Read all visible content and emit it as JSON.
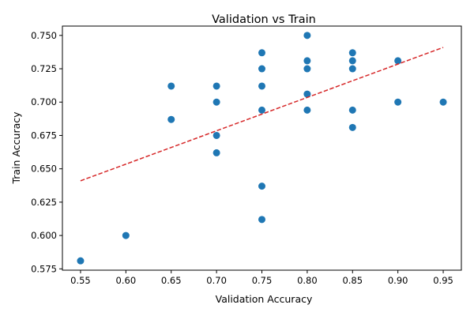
{
  "chart_data": {
    "type": "scatter",
    "title": "Validation vs Train",
    "xlabel": "Validation Accuracy",
    "ylabel": "Train Accuracy",
    "xlim": [
      0.53,
      0.97
    ],
    "ylim": [
      0.574,
      0.757
    ],
    "x_ticks": [
      "0.55",
      "0.60",
      "0.65",
      "0.70",
      "0.75",
      "0.80",
      "0.85",
      "0.90",
      "0.95"
    ],
    "y_ticks": [
      "0.575",
      "0.600",
      "0.625",
      "0.650",
      "0.675",
      "0.700",
      "0.725",
      "0.750"
    ],
    "grid": false,
    "legend": "none",
    "points": [
      {
        "x": 0.55,
        "y": 0.581
      },
      {
        "x": 0.6,
        "y": 0.6
      },
      {
        "x": 0.65,
        "y": 0.712
      },
      {
        "x": 0.65,
        "y": 0.687
      },
      {
        "x": 0.7,
        "y": 0.712
      },
      {
        "x": 0.7,
        "y": 0.7
      },
      {
        "x": 0.7,
        "y": 0.675
      },
      {
        "x": 0.7,
        "y": 0.662
      },
      {
        "x": 0.75,
        "y": 0.737
      },
      {
        "x": 0.75,
        "y": 0.725
      },
      {
        "x": 0.75,
        "y": 0.712
      },
      {
        "x": 0.75,
        "y": 0.694
      },
      {
        "x": 0.75,
        "y": 0.637
      },
      {
        "x": 0.75,
        "y": 0.612
      },
      {
        "x": 0.8,
        "y": 0.75
      },
      {
        "x": 0.8,
        "y": 0.731
      },
      {
        "x": 0.8,
        "y": 0.725
      },
      {
        "x": 0.8,
        "y": 0.706
      },
      {
        "x": 0.8,
        "y": 0.694
      },
      {
        "x": 0.85,
        "y": 0.737
      },
      {
        "x": 0.85,
        "y": 0.731
      },
      {
        "x": 0.85,
        "y": 0.725
      },
      {
        "x": 0.85,
        "y": 0.694
      },
      {
        "x": 0.85,
        "y": 0.681
      },
      {
        "x": 0.9,
        "y": 0.731
      },
      {
        "x": 0.9,
        "y": 0.7
      },
      {
        "x": 0.95,
        "y": 0.7
      }
    ],
    "trendline": {
      "style": "dashed",
      "x": [
        0.55,
        0.95
      ],
      "y": [
        0.641,
        0.741
      ]
    },
    "colors": {
      "points": "#1f77b4",
      "trendline": "#d62728",
      "axes": "#000000"
    }
  }
}
